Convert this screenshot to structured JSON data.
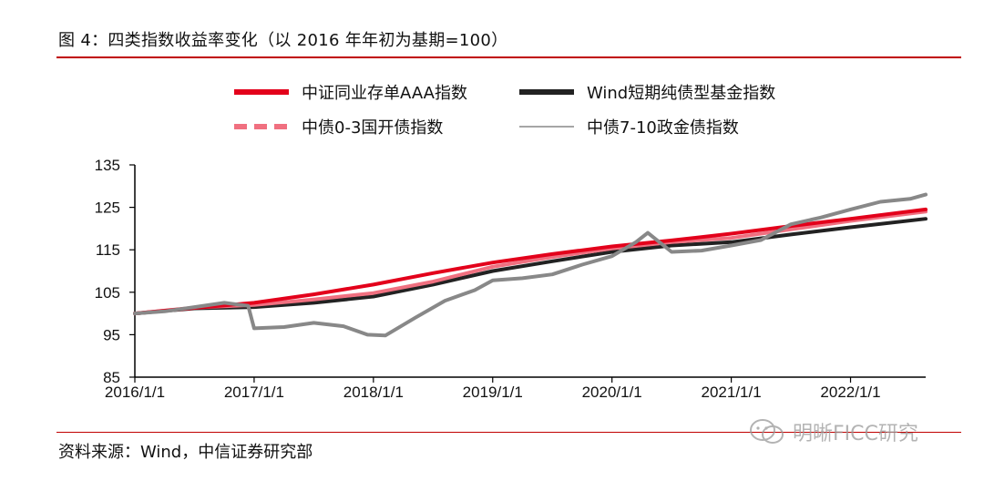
{
  "figure_title": "图 4：四类指数收益率变化（以 2016 年年初为基期=100）",
  "source_text": "资料来源：Wind，中信证券研究部",
  "watermark_text": "明晰FICC研究",
  "colors": {
    "accent": "#c00000",
    "cd_aaa": "#e3001b",
    "wind_short": "#222222",
    "cdb_0_3": "#f07080",
    "cgb_7_10": "#888888"
  },
  "chart_data": {
    "type": "line",
    "title": "",
    "xlabel": "",
    "ylabel": "",
    "ylim": [
      85,
      135
    ],
    "yticks": [
      85,
      95,
      105,
      115,
      125,
      135
    ],
    "xlim": [
      2016.0,
      2022.63
    ],
    "xticks": [
      "2016/1/1",
      "2017/1/1",
      "2018/1/1",
      "2019/1/1",
      "2020/1/1",
      "2021/1/1",
      "2022/1/1"
    ],
    "grid": false,
    "legend_position": "top",
    "series": [
      {
        "name": "中证同业存单AAA指数",
        "color": "#e3001b",
        "style": "solid-thick",
        "x": [
          2016.0,
          2016.5,
          2017.0,
          2017.5,
          2018.0,
          2018.5,
          2019.0,
          2019.5,
          2020.0,
          2020.5,
          2021.0,
          2021.5,
          2022.0,
          2022.63
        ],
        "y": [
          100,
          101.3,
          102.5,
          104.5,
          106.8,
          109.5,
          112.0,
          114.0,
          115.8,
          117.2,
          118.8,
          120.6,
          122.3,
          124.5
        ]
      },
      {
        "name": "Wind短期纯债型基金指数",
        "color": "#222222",
        "style": "solid-thick",
        "x": [
          2016.0,
          2016.5,
          2017.0,
          2017.5,
          2018.0,
          2018.5,
          2019.0,
          2019.5,
          2020.0,
          2020.5,
          2021.0,
          2021.5,
          2022.0,
          2022.63
        ],
        "y": [
          100,
          101.2,
          101.5,
          102.5,
          104.0,
          106.8,
          110.0,
          112.3,
          114.5,
          116.0,
          116.8,
          118.6,
          120.3,
          122.3
        ]
      },
      {
        "name": "中债0-3国开债指数",
        "color": "#f07080",
        "style": "dashed-thick",
        "x": [
          2016.0,
          2016.5,
          2017.0,
          2017.5,
          2018.0,
          2018.5,
          2019.0,
          2019.5,
          2020.0,
          2020.5,
          2021.0,
          2021.5,
          2022.0,
          2022.63
        ],
        "y": [
          100,
          101.4,
          102.0,
          103.3,
          104.8,
          107.5,
          111.0,
          113.3,
          115.3,
          116.8,
          117.8,
          119.8,
          121.8,
          124.0
        ]
      },
      {
        "name": "中债7-10政金债指数",
        "color": "#888888",
        "style": "solid-thick-noisy",
        "x": [
          2016.0,
          2016.25,
          2016.5,
          2016.75,
          2016.95,
          2017.0,
          2017.25,
          2017.5,
          2017.75,
          2017.95,
          2018.1,
          2018.35,
          2018.6,
          2018.85,
          2019.0,
          2019.25,
          2019.5,
          2019.75,
          2020.0,
          2020.2,
          2020.3,
          2020.5,
          2020.75,
          2021.0,
          2021.25,
          2021.5,
          2021.75,
          2022.0,
          2022.25,
          2022.5,
          2022.63
        ],
        "y": [
          100,
          100.5,
          101.5,
          102.5,
          101.8,
          96.5,
          96.8,
          97.8,
          97.0,
          95.0,
          94.8,
          99.0,
          103.0,
          105.5,
          107.8,
          108.3,
          109.2,
          111.5,
          113.5,
          116.8,
          119.0,
          114.5,
          114.8,
          116.0,
          117.3,
          121.0,
          122.6,
          124.5,
          126.3,
          127.0,
          128.0
        ]
      }
    ]
  }
}
